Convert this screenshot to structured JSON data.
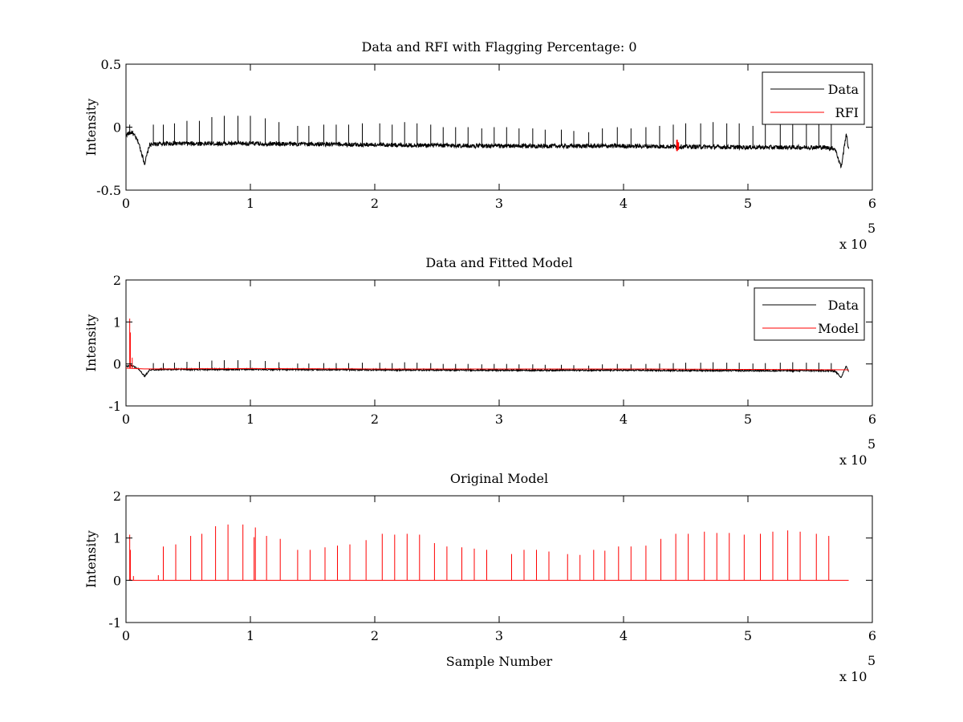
{
  "chart_data": [
    {
      "type": "line",
      "title": "Data and RFI with Flagging Percentage: 0",
      "xlabel": "",
      "ylabel": "Intensity",
      "xlim": [
        0,
        6
      ],
      "ylim": [
        -0.5,
        0.5
      ],
      "xticks": [
        "0",
        "1",
        "2",
        "3",
        "4",
        "5",
        "6"
      ],
      "yticks": [
        "-0.5",
        "0",
        "0.5"
      ],
      "x_multiplier": "x 10",
      "x_exponent": "5",
      "legend_position": "top-right",
      "series": [
        {
          "name": "Data",
          "color": "#000000",
          "baseline": [
            [
              0.0,
              -0.06
            ],
            [
              0.05,
              -0.04
            ],
            [
              0.1,
              -0.12
            ],
            [
              0.15,
              -0.29
            ],
            [
              0.19,
              -0.14
            ],
            [
              0.3,
              -0.13
            ],
            [
              1.0,
              -0.13
            ],
            [
              2.0,
              -0.14
            ],
            [
              3.0,
              -0.15
            ],
            [
              4.0,
              -0.15
            ],
            [
              5.0,
              -0.16
            ],
            [
              5.6,
              -0.16
            ],
            [
              5.7,
              -0.17
            ],
            [
              5.75,
              -0.32
            ],
            [
              5.79,
              -0.05
            ],
            [
              5.81,
              -0.18
            ]
          ],
          "noise": 0.035,
          "spikes_x": [
            0.03,
            0.22,
            0.3,
            0.39,
            0.49,
            0.59,
            0.69,
            0.79,
            0.9,
            1.0,
            1.12,
            1.23,
            1.38,
            1.47,
            1.59,
            1.69,
            1.79,
            1.9,
            2.04,
            2.14,
            2.24,
            2.34,
            2.45,
            2.55,
            2.65,
            2.75,
            2.86,
            2.96,
            3.06,
            3.16,
            3.27,
            3.37,
            3.5,
            3.6,
            3.72,
            3.83,
            3.95,
            4.06,
            4.18,
            4.29,
            4.4,
            4.5,
            4.62,
            4.72,
            4.83,
            4.93,
            5.04,
            5.14,
            5.26,
            5.36,
            5.47,
            5.57,
            5.67
          ],
          "spikes_top": [
            0.02,
            0.02,
            0.02,
            0.03,
            0.05,
            0.05,
            0.08,
            0.09,
            0.09,
            0.09,
            0.07,
            0.04,
            0.01,
            0.01,
            0.02,
            0.02,
            0.02,
            0.03,
            0.03,
            0.02,
            0.04,
            0.03,
            0.02,
            0.0,
            0.0,
            0.0,
            -0.01,
            0.0,
            0.0,
            -0.01,
            -0.01,
            -0.02,
            -0.02,
            -0.03,
            -0.04,
            -0.01,
            0.0,
            -0.01,
            0.0,
            0.01,
            0.02,
            0.03,
            0.03,
            0.04,
            0.03,
            0.03,
            0.01,
            0.02,
            0.03,
            0.04,
            0.03,
            0.03,
            0.02
          ]
        },
        {
          "name": "RFI",
          "color": "#ff0000",
          "segments": [
            [
              [
                4.43,
                -0.1
              ],
              [
                4.43,
                -0.19
              ]
            ],
            [
              [
                4.44,
                -0.12
              ],
              [
                4.44,
                -0.18
              ]
            ]
          ]
        }
      ]
    },
    {
      "type": "line",
      "title": "Data and Fitted Model",
      "xlabel": "",
      "ylabel": "Intensity",
      "xlim": [
        0,
        6
      ],
      "ylim": [
        -1,
        2
      ],
      "xticks": [
        "0",
        "1",
        "2",
        "3",
        "4",
        "5",
        "6"
      ],
      "yticks": [
        "-1",
        "0",
        "1",
        "2"
      ],
      "x_multiplier": "x 10",
      "x_exponent": "5",
      "legend_position": "top-right",
      "series": [
        {
          "name": "Data",
          "color": "#000000",
          "baseline": [
            [
              0.0,
              -0.06
            ],
            [
              0.05,
              -0.04
            ],
            [
              0.1,
              -0.12
            ],
            [
              0.15,
              -0.29
            ],
            [
              0.19,
              -0.14
            ],
            [
              0.3,
              -0.13
            ],
            [
              1.0,
              -0.13
            ],
            [
              2.0,
              -0.14
            ],
            [
              3.0,
              -0.15
            ],
            [
              4.0,
              -0.15
            ],
            [
              5.0,
              -0.16
            ],
            [
              5.6,
              -0.16
            ],
            [
              5.7,
              -0.17
            ],
            [
              5.75,
              -0.32
            ],
            [
              5.79,
              -0.05
            ],
            [
              5.81,
              -0.18
            ]
          ],
          "noise": 0.035,
          "spikes_x": [
            0.22,
            0.3,
            0.39,
            0.49,
            0.59,
            0.69,
            0.79,
            0.9,
            1.0,
            1.12,
            1.23,
            1.38,
            1.47,
            1.59,
            1.69,
            1.79,
            1.9,
            2.04,
            2.14,
            2.24,
            2.34,
            2.45,
            2.55,
            2.65,
            2.75,
            2.86,
            2.96,
            3.06,
            3.16,
            3.27,
            3.37,
            3.5,
            3.6,
            3.72,
            3.83,
            3.95,
            4.06,
            4.18,
            4.29,
            4.4,
            4.5,
            4.62,
            4.72,
            4.83,
            4.93,
            5.04,
            5.14,
            5.26,
            5.36,
            5.47,
            5.57,
            5.67
          ],
          "spikes_top": [
            0.02,
            0.02,
            0.03,
            0.05,
            0.05,
            0.08,
            0.09,
            0.09,
            0.09,
            0.07,
            0.04,
            0.01,
            0.01,
            0.02,
            0.02,
            0.02,
            0.03,
            0.03,
            0.02,
            0.04,
            0.03,
            0.02,
            0.0,
            0.0,
            0.0,
            -0.01,
            0.0,
            0.0,
            -0.01,
            -0.01,
            -0.02,
            -0.02,
            -0.03,
            -0.04,
            -0.01,
            0.0,
            -0.01,
            0.0,
            0.01,
            0.02,
            0.03,
            0.03,
            0.04,
            0.03,
            0.03,
            0.01,
            0.02,
            0.03,
            0.04,
            0.03,
            0.03,
            0.02
          ]
        },
        {
          "name": "Model",
          "color": "#ff0000",
          "baseline": [
            [
              0.0,
              -0.1
            ],
            [
              0.1,
              -0.12
            ],
            [
              1.0,
              -0.11
            ],
            [
              2.0,
              -0.12
            ],
            [
              3.0,
              -0.12
            ],
            [
              4.0,
              -0.12
            ],
            [
              5.0,
              -0.13
            ],
            [
              5.81,
              -0.14
            ]
          ],
          "spikes_x": [
            0.03,
            0.035,
            0.05
          ],
          "spikes_top": [
            1.08,
            0.75,
            0.15
          ]
        }
      ]
    },
    {
      "type": "line",
      "title": "Original Model",
      "xlabel": "Sample Number",
      "ylabel": "Intensity",
      "xlim": [
        0,
        6
      ],
      "ylim": [
        -1,
        2
      ],
      "xticks": [
        "0",
        "1",
        "2",
        "3",
        "4",
        "5",
        "6"
      ],
      "yticks": [
        "-1",
        "0",
        "1",
        "2"
      ],
      "x_multiplier": "x 10",
      "x_exponent": "5",
      "series": [
        {
          "name": "Model",
          "color": "#ff0000",
          "baseline": [
            [
              0.02,
              0.0
            ],
            [
              5.81,
              0.0
            ]
          ],
          "spikes_x": [
            0.03,
            0.035,
            0.06,
            0.26,
            0.3,
            0.4,
            0.52,
            0.61,
            0.72,
            0.82,
            0.94,
            1.03,
            1.04,
            1.13,
            1.24,
            1.38,
            1.48,
            1.6,
            1.7,
            1.8,
            1.93,
            2.06,
            2.16,
            2.26,
            2.36,
            2.48,
            2.58,
            2.7,
            2.8,
            2.9,
            3.1,
            3.2,
            3.3,
            3.4,
            3.55,
            3.65,
            3.76,
            3.85,
            3.96,
            4.06,
            4.18,
            4.3,
            4.42,
            4.52,
            4.65,
            4.75,
            4.85,
            4.97,
            5.1,
            5.2,
            5.32,
            5.42,
            5.55,
            5.65
          ],
          "spikes_top": [
            1.08,
            0.72,
            0.1,
            0.12,
            0.8,
            0.85,
            1.05,
            1.1,
            1.28,
            1.32,
            1.32,
            1.02,
            1.25,
            1.05,
            0.98,
            0.72,
            0.72,
            0.78,
            0.82,
            0.85,
            0.95,
            1.1,
            1.08,
            1.1,
            1.08,
            0.88,
            0.8,
            0.78,
            0.75,
            0.72,
            0.62,
            0.72,
            0.72,
            0.68,
            0.62,
            0.6,
            0.72,
            0.7,
            0.8,
            0.8,
            0.82,
            0.98,
            1.1,
            1.1,
            1.15,
            1.12,
            1.12,
            1.08,
            1.1,
            1.15,
            1.18,
            1.15,
            1.1,
            1.05
          ]
        }
      ]
    }
  ]
}
